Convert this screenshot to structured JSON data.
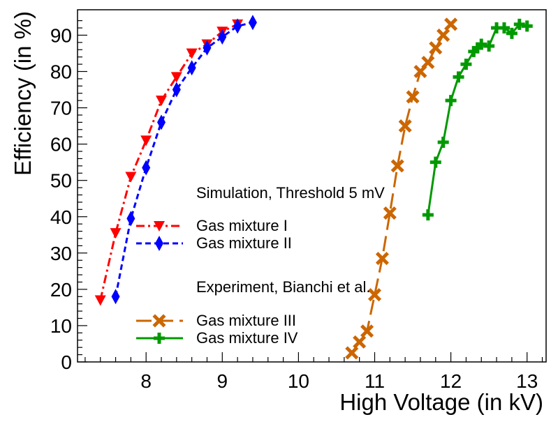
{
  "chart_data": {
    "type": "line",
    "title": "",
    "xlabel": "High Voltage (in kV)",
    "ylabel": "Efficiency (in %)",
    "xlim": [
      7.1,
      13.25
    ],
    "ylim": [
      0,
      97
    ],
    "x_ticks": [
      8,
      9,
      10,
      11,
      12,
      13
    ],
    "y_ticks": [
      0,
      10,
      20,
      30,
      40,
      50,
      60,
      70,
      80,
      90
    ],
    "grid": false,
    "legend_groups": [
      {
        "header": "Simulation, Threshold 5 mV",
        "entries": [
          "Gas mixture I",
          "Gas mixture II"
        ]
      },
      {
        "header": "Experiment, Bianchi et al.",
        "entries": [
          "Gas mixture III",
          "Gas mixture IV"
        ]
      }
    ],
    "series": [
      {
        "name": "Gas mixture I",
        "color": "#ff0000",
        "marker": "triangle-down",
        "linestyle": "dash-dot",
        "x": [
          7.4,
          7.6,
          7.8,
          8.0,
          8.2,
          8.4,
          8.6,
          8.8,
          9.0,
          9.2
        ],
        "y": [
          17,
          35.5,
          51,
          61,
          72,
          78.5,
          85,
          87.5,
          91,
          93
        ]
      },
      {
        "name": "Gas mixture II",
        "color": "#0000ff",
        "marker": "diamond",
        "linestyle": "dash",
        "x": [
          7.6,
          7.8,
          8.0,
          8.2,
          8.4,
          8.6,
          8.8,
          9.0,
          9.2,
          9.4
        ],
        "y": [
          18,
          39.5,
          53.5,
          66,
          75,
          81,
          86.5,
          89.5,
          92.5,
          93.5
        ]
      },
      {
        "name": "Gas mixture III",
        "color": "#cc6600",
        "marker": "x-cross",
        "linestyle": "long-dash",
        "x": [
          10.7,
          10.8,
          10.9,
          11.0,
          11.1,
          11.2,
          11.3,
          11.4,
          11.5,
          11.6,
          11.7,
          11.8,
          11.9,
          12.0
        ],
        "y": [
          2.5,
          5.5,
          8.5,
          18.5,
          28.5,
          41,
          54,
          65,
          73,
          80,
          82.5,
          86.5,
          90,
          93
        ]
      },
      {
        "name": "Gas mixture IV",
        "color": "#009900",
        "marker": "plus",
        "linestyle": "solid",
        "x": [
          11.7,
          11.8,
          11.9,
          12.0,
          12.1,
          12.2,
          12.3,
          12.35,
          12.4,
          12.5,
          12.6,
          12.7,
          12.8,
          12.9,
          13.0
        ],
        "y": [
          40.5,
          55,
          60.5,
          72,
          78.5,
          82,
          85.5,
          86.5,
          87.5,
          87,
          92,
          92,
          90.5,
          93,
          92.5
        ]
      }
    ]
  }
}
